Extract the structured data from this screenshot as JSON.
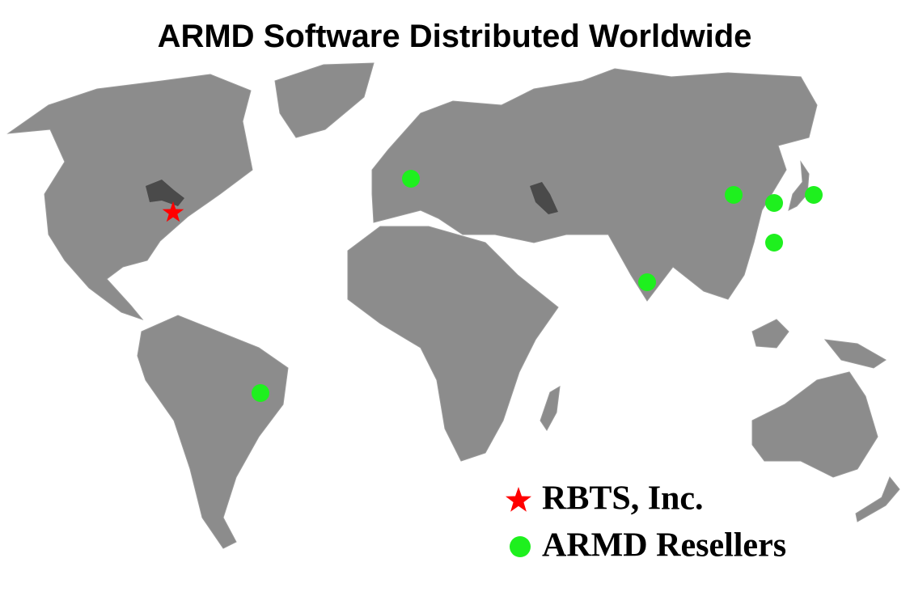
{
  "title": "ARMD Software Distributed Worldwide",
  "legend": [
    {
      "label": "RBTS, Inc."
    },
    {
      "label": "ARMD Resellers"
    }
  ]
}
